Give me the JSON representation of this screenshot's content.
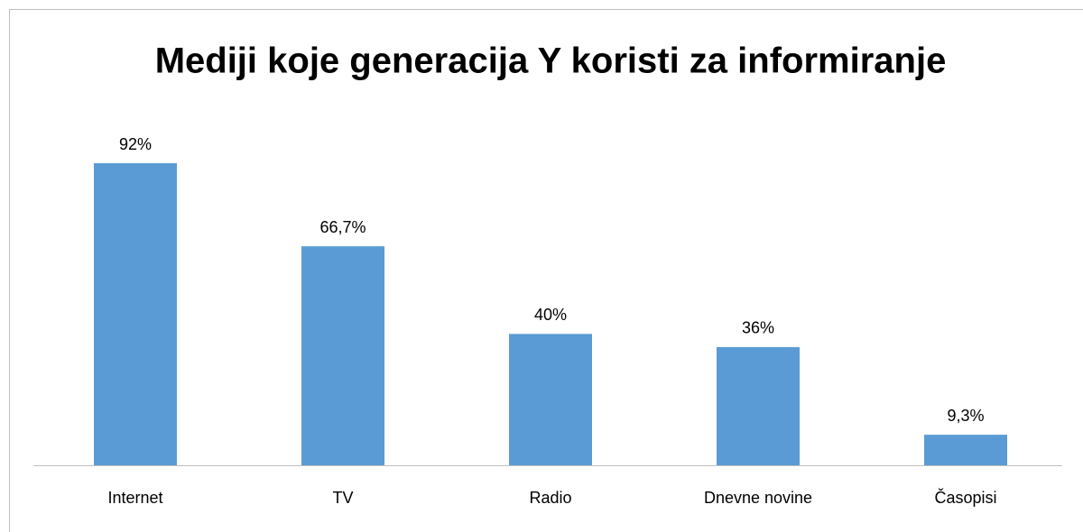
{
  "chart_data": {
    "type": "bar",
    "title": "Mediji koje generacija Y koristi za informiranje",
    "categories": [
      "Internet",
      "TV",
      "Radio",
      "Dnevne novine",
      "Časopisi"
    ],
    "values": [
      92,
      66.7,
      40,
      36,
      9.3
    ],
    "value_labels": [
      "92%",
      "66,7%",
      "40%",
      "36%",
      "9,3%"
    ],
    "color": "#5b9bd5"
  }
}
